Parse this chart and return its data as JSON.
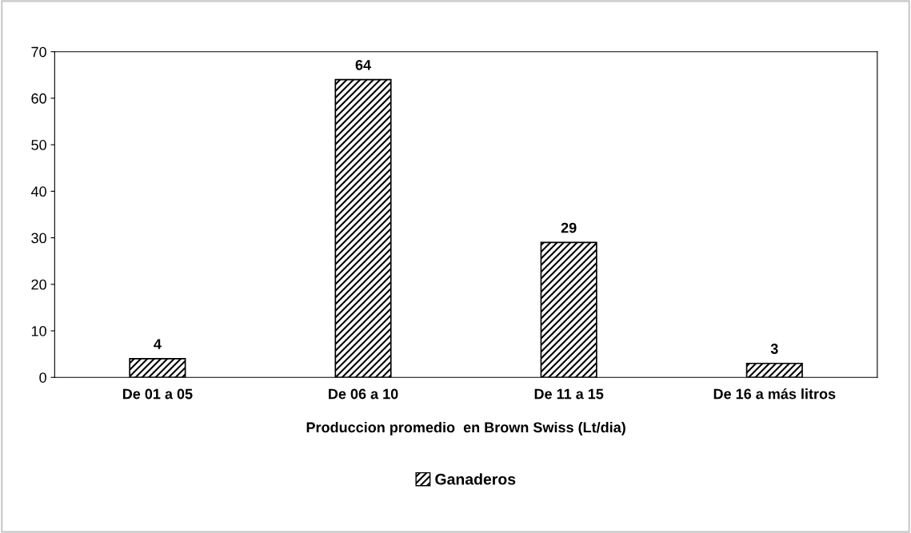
{
  "chart_data": {
    "type": "bar",
    "xlabel": "Produccion promedio  en Brown Swiss (Lt/dia)",
    "categories": [
      "De 01 a 05",
      "De 06 a 10",
      "De 11 a 15",
      "De 16 a más litros"
    ],
    "series": [
      {
        "name": "Ganaderos",
        "color": "#000000",
        "values": [
          4,
          64,
          29,
          3
        ]
      }
    ],
    "ylim": [
      0,
      70
    ],
    "yticks": [
      0,
      10,
      20,
      30,
      40,
      50,
      60,
      70
    ],
    "data_labels": true,
    "grid": false,
    "legend": "bottom"
  }
}
